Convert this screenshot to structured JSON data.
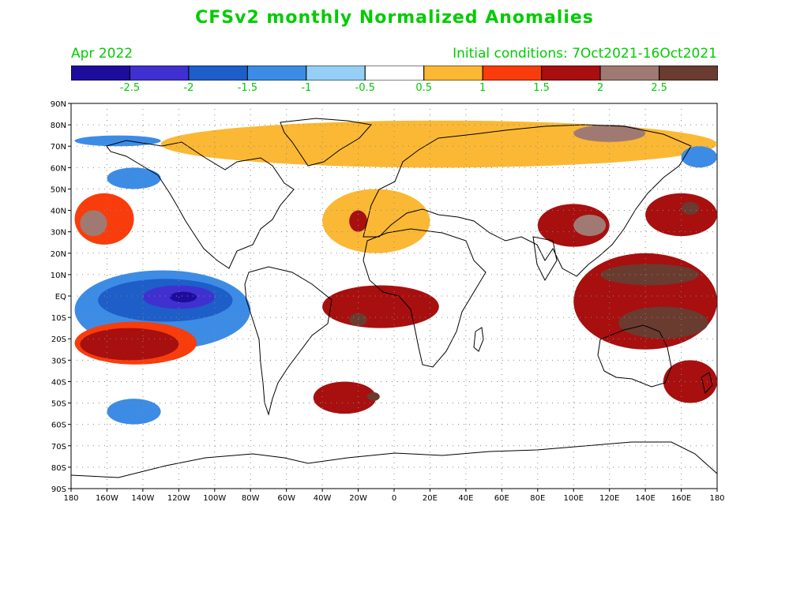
{
  "title": "CFSv2 monthly Normalized Anomalies",
  "valid_month": "Apr 2022",
  "initial_conditions": "Initial conditions:  7Oct2021-16Oct2021",
  "colorbar": {
    "colors": [
      "#1e0d9c",
      "#4030d0",
      "#1d5ec8",
      "#3c8ce6",
      "#96cff5",
      "#ffffff",
      "#fbb834",
      "#f93c0b",
      "#a80f0f",
      "#a07a72",
      "#6a3b2f"
    ],
    "labels": [
      "-2.5",
      "-2",
      "-1.5",
      "-1",
      "-0.5",
      "0.5",
      "1",
      "1.5",
      "2",
      "2.5"
    ]
  },
  "axes": {
    "lat_labels": [
      "90N",
      "80N",
      "70N",
      "60N",
      "50N",
      "40N",
      "30N",
      "20N",
      "10N",
      "EQ",
      "10S",
      "20S",
      "30S",
      "40S",
      "50S",
      "60S",
      "70S",
      "80S",
      "90S"
    ],
    "lon_labels": [
      "180",
      "160W",
      "140W",
      "120W",
      "100W",
      "80W",
      "60W",
      "40W",
      "20W",
      "0",
      "20E",
      "40E",
      "60E",
      "80E",
      "100E",
      "120E",
      "140E",
      "160E",
      "180"
    ]
  },
  "anomaly_regions": [
    {
      "level": -1.0,
      "lon": [
        -178,
        -130
      ],
      "lat": [
        75,
        70
      ]
    },
    {
      "level": -1.0,
      "lon": [
        -160,
        -130
      ],
      "lat": [
        60,
        50
      ]
    },
    {
      "level": -1.0,
      "lon": [
        -178,
        -80
      ],
      "lat": [
        12,
        -25
      ]
    },
    {
      "level": -1.5,
      "lon": [
        -165,
        -90
      ],
      "lat": [
        8,
        -12
      ]
    },
    {
      "level": -2.0,
      "lon": [
        -140,
        -100
      ],
      "lat": [
        5,
        -6
      ]
    },
    {
      "level": -2.5,
      "lon": [
        -125,
        -110
      ],
      "lat": [
        2,
        -3
      ]
    },
    {
      "level": -1.0,
      "lon": [
        -160,
        -130
      ],
      "lat": [
        -48,
        -60
      ]
    },
    {
      "level": 1.0,
      "lon": [
        -178,
        -145
      ],
      "lat": [
        48,
        24
      ]
    },
    {
      "level": 2.0,
      "lon": [
        -175,
        -160
      ],
      "lat": [
        40,
        28
      ]
    },
    {
      "level": 1.0,
      "lon": [
        -178,
        -110
      ],
      "lat": [
        -12,
        -32
      ]
    },
    {
      "level": 1.5,
      "lon": [
        -175,
        -120
      ],
      "lat": [
        -15,
        -30
      ]
    },
    {
      "level": 0.5,
      "lon": [
        -40,
        20
      ],
      "lat": [
        50,
        20
      ]
    },
    {
      "level": 0.5,
      "lon": [
        -130,
        180
      ],
      "lat": [
        82,
        60
      ]
    },
    {
      "level": 1.5,
      "lon": [
        -25,
        -15
      ],
      "lat": [
        40,
        30
      ]
    },
    {
      "level": 1.5,
      "lon": [
        -40,
        25
      ],
      "lat": [
        5,
        -15
      ]
    },
    {
      "level": 2.5,
      "lon": [
        -25,
        -15
      ],
      "lat": [
        -8,
        -14
      ]
    },
    {
      "level": 1.5,
      "lon": [
        -45,
        -10
      ],
      "lat": [
        -40,
        -55
      ]
    },
    {
      "level": 2.5,
      "lon": [
        -15,
        -8
      ],
      "lat": [
        -45,
        -49
      ]
    },
    {
      "level": 1.5,
      "lon": [
        80,
        120
      ],
      "lat": [
        43,
        23
      ]
    },
    {
      "level": 2.0,
      "lon": [
        100,
        118
      ],
      "lat": [
        38,
        28
      ]
    },
    {
      "level": 1.5,
      "lon": [
        100,
        180
      ],
      "lat": [
        20,
        -25
      ]
    },
    {
      "level": 2.5,
      "lon": [
        115,
        170
      ],
      "lat": [
        15,
        5
      ]
    },
    {
      "level": 2.5,
      "lon": [
        125,
        175
      ],
      "lat": [
        -5,
        -20
      ]
    },
    {
      "level": 2.0,
      "lon": [
        100,
        140
      ],
      "lat": [
        80,
        72
      ]
    },
    {
      "level": 1.5,
      "lon": [
        140,
        180
      ],
      "lat": [
        48,
        28
      ]
    },
    {
      "level": 2.5,
      "lon": [
        160,
        170
      ],
      "lat": [
        44,
        38
      ]
    },
    {
      "level": 1.5,
      "lon": [
        150,
        180
      ],
      "lat": [
        -30,
        -50
      ]
    },
    {
      "level": -1.0,
      "lon": [
        160,
        180
      ],
      "lat": [
        70,
        60
      ]
    }
  ]
}
